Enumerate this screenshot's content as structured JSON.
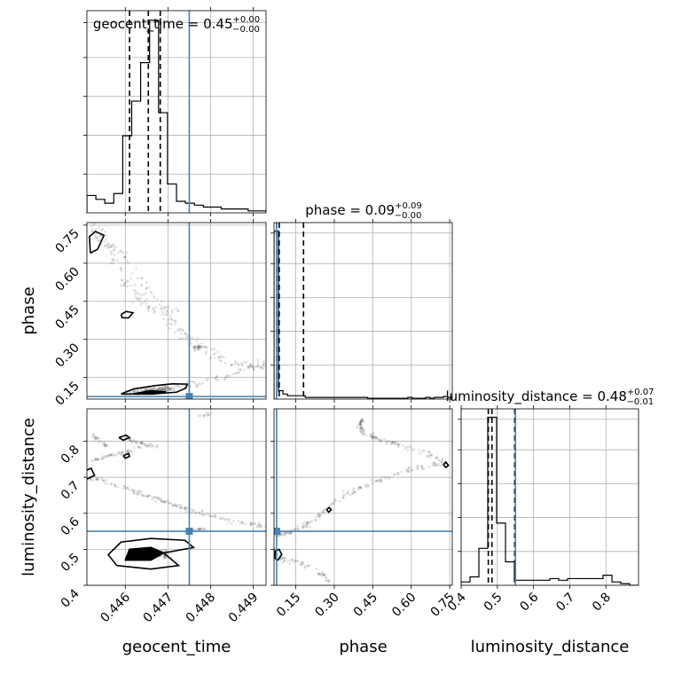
{
  "chart_data": {
    "type": "scatter",
    "parameters": [
      "geocent_time",
      "phase",
      "luminosity_distance"
    ],
    "axis_labels": {
      "geocent_time": "geocent_time",
      "phase": "phase",
      "luminosity_distance": "luminosity_distance"
    },
    "ranges": {
      "geocent_time": [
        0.4451,
        0.4493
      ],
      "phase": [
        0.065,
        0.76
      ],
      "luminosity_distance": [
        0.4,
        0.89
      ]
    },
    "ticks": {
      "geocent_time": [
        "0.446",
        "0.447",
        "0.448",
        "0.449"
      ],
      "phase": [
        "0.15",
        "0.30",
        "0.45",
        "0.60",
        "0.75"
      ],
      "luminosity_distance_x": [
        "0.4",
        "0.5",
        "0.6",
        "0.7",
        "0.8"
      ],
      "luminosity_distance_y": [
        "0.4",
        "0.5",
        "0.6",
        "0.7",
        "0.8"
      ]
    },
    "tick_values": {
      "geocent_time": [
        0.446,
        0.447,
        0.448,
        0.449
      ],
      "phase": [
        0.15,
        0.3,
        0.45,
        0.6,
        0.75
      ],
      "luminosity_distance": [
        0.4,
        0.5,
        0.6,
        0.7,
        0.8
      ]
    },
    "truth": {
      "geocent_time": 0.4475,
      "phase": 0.075,
      "luminosity_distance": 0.55,
      "color": "#4682b4"
    },
    "titles": [
      {
        "param": "geocent_time",
        "text": "geocent_time = 0.45",
        "plus": "+0.00",
        "minus": "−0.00"
      },
      {
        "param": "phase",
        "text": "phase = 0.09",
        "plus": "+0.09",
        "minus": "−0.00"
      },
      {
        "param": "luminosity_distance",
        "text": "luminosity_distance = 0.48",
        "plus": "+0.07",
        "minus": "−0.01"
      }
    ],
    "quantiles": {
      "geocent_time": [
        0.4461,
        0.44654,
        0.44682
      ],
      "phase": [
        0.075,
        0.085,
        0.18
      ],
      "luminosity_distance": [
        0.475,
        0.485,
        0.548
      ]
    },
    "histograms": {
      "geocent_time": {
        "edges": [
          0.4451,
          0.44531,
          0.44552,
          0.44573,
          0.44594,
          0.44615,
          0.44636,
          0.44657,
          0.44678,
          0.44699,
          0.4472,
          0.44741,
          0.44762,
          0.44783,
          0.44804,
          0.44825,
          0.44846,
          0.44867,
          0.44888,
          0.44909,
          0.4493
        ],
        "counts": [
          0.09,
          0.07,
          0.05,
          0.1,
          0.4,
          0.58,
          0.78,
          1.0,
          0.52,
          0.15,
          0.06,
          0.05,
          0.04,
          0.03,
          0.03,
          0.02,
          0.02,
          0.02,
          0.01,
          0.01
        ]
      },
      "phase": {
        "edges": [
          0.065,
          0.0824,
          0.0998,
          0.1171,
          0.1345,
          0.1519,
          0.1693,
          0.1866,
          0.204,
          0.2214,
          0.2388,
          0.2561,
          0.2735,
          0.2909,
          0.3083,
          0.3256,
          0.343,
          0.3604,
          0.3778,
          0.3951,
          0.4125,
          0.4299,
          0.4473,
          0.4646,
          0.482,
          0.4994,
          0.5168,
          0.5341,
          0.5515,
          0.5689,
          0.5863,
          0.6036,
          0.621,
          0.6384,
          0.6558,
          0.6731,
          0.6905,
          0.7079,
          0.7253,
          0.7426,
          0.76
        ],
        "counts": [
          1.0,
          0.05,
          0.03,
          0.02,
          0.02,
          0.02,
          0.02,
          0.01,
          0.01,
          0.01,
          0.01,
          0.01,
          0.01,
          0.01,
          0.01,
          0.01,
          0.01,
          0.01,
          0.01,
          0.01,
          0.01,
          0.005,
          0.005,
          0.005,
          0.005,
          0.005,
          0.005,
          0.005,
          0.005,
          0.005,
          0.01,
          0.005,
          0.005,
          0.005,
          0.01,
          0.005,
          0.01,
          0.01,
          0.015,
          0.01
        ]
      },
      "luminosity_distance": {
        "edges": [
          0.4,
          0.4245,
          0.449,
          0.4735,
          0.498,
          0.5225,
          0.547,
          0.5715,
          0.596,
          0.6205,
          0.645,
          0.6695,
          0.694,
          0.7185,
          0.743,
          0.7675,
          0.792,
          0.8165,
          0.841,
          0.8655,
          0.89
        ],
        "counts": [
          0.02,
          0.05,
          0.22,
          1.0,
          0.37,
          0.14,
          0.03,
          0.03,
          0.03,
          0.03,
          0.04,
          0.03,
          0.04,
          0.04,
          0.04,
          0.04,
          0.06,
          0.02,
          0.01,
          0.0
        ]
      }
    },
    "contours": {
      "phase_vs_geocent_time": [
        [
          [
            0.4459,
            0.085
          ],
          [
            0.4462,
            0.105
          ],
          [
            0.4467,
            0.118
          ],
          [
            0.4471,
            0.125
          ],
          [
            0.44745,
            0.124
          ],
          [
            0.44742,
            0.108
          ],
          [
            0.4472,
            0.092
          ],
          [
            0.4466,
            0.085
          ],
          [
            0.4459,
            0.085
          ]
        ],
        [
          [
            0.4462,
            0.086
          ],
          [
            0.4466,
            0.098
          ],
          [
            0.44695,
            0.093
          ],
          [
            0.44665,
            0.085
          ],
          [
            0.4462,
            0.086
          ]
        ],
        [
          [
            0.44518,
            0.64
          ],
          [
            0.44535,
            0.655
          ],
          [
            0.4455,
            0.71
          ],
          [
            0.4453,
            0.725
          ],
          [
            0.44516,
            0.705
          ],
          [
            0.44518,
            0.64
          ]
        ],
        [
          [
            0.4459,
            0.398
          ],
          [
            0.44602,
            0.41
          ],
          [
            0.44618,
            0.405
          ],
          [
            0.44608,
            0.385
          ],
          [
            0.44593,
            0.385
          ],
          [
            0.4459,
            0.398
          ]
        ]
      ],
      "luminosity_distance_vs_geocent_time": [
        [
          [
            0.4458,
            0.455
          ],
          [
            0.4456,
            0.485
          ],
          [
            0.4459,
            0.52
          ],
          [
            0.4466,
            0.53
          ],
          [
            0.4474,
            0.525
          ],
          [
            0.4476,
            0.505
          ],
          [
            0.4469,
            0.49
          ],
          [
            0.44725,
            0.455
          ],
          [
            0.4466,
            0.445
          ],
          [
            0.4458,
            0.455
          ]
        ],
        [
          [
            0.446,
            0.47
          ],
          [
            0.4461,
            0.5
          ],
          [
            0.4466,
            0.505
          ],
          [
            0.4469,
            0.49
          ],
          [
            0.4466,
            0.47
          ],
          [
            0.446,
            0.47
          ]
        ],
        [
          [
            0.4451,
            0.695
          ],
          [
            0.44528,
            0.705
          ],
          [
            0.4452,
            0.725
          ],
          [
            0.4451,
            0.72
          ]
        ],
        [
          [
            0.44585,
            0.81
          ],
          [
            0.44602,
            0.817
          ],
          [
            0.4461,
            0.81
          ],
          [
            0.44595,
            0.803
          ],
          [
            0.44585,
            0.81
          ]
        ],
        [
          [
            0.44595,
            0.76
          ],
          [
            0.44608,
            0.766
          ],
          [
            0.4461,
            0.758
          ],
          [
            0.446,
            0.753
          ],
          [
            0.44595,
            0.76
          ]
        ]
      ],
      "luminosity_distance_vs_phase": [
        [
          [
            0.068,
            0.475
          ],
          [
            0.07,
            0.495
          ],
          [
            0.085,
            0.5
          ],
          [
            0.095,
            0.485
          ],
          [
            0.08,
            0.47
          ],
          [
            0.068,
            0.475
          ]
        ],
        [
          [
            0.725,
            0.735
          ],
          [
            0.735,
            0.742
          ],
          [
            0.745,
            0.733
          ],
          [
            0.735,
            0.727
          ],
          [
            0.725,
            0.735
          ]
        ],
        [
          [
            0.27,
            0.61
          ],
          [
            0.28,
            0.616
          ],
          [
            0.288,
            0.61
          ],
          [
            0.278,
            0.603
          ],
          [
            0.27,
            0.61
          ]
        ]
      ]
    },
    "samples": {
      "phase_vs_geocent_time": [
        {
          "path": [
            [
              0.4452,
              0.74
            ],
            [
              0.4454,
              0.71
            ],
            [
              0.4457,
              0.66
            ],
            [
              0.4461,
              0.59
            ],
            [
              0.4465,
              0.5
            ],
            [
              0.4469,
              0.41
            ],
            [
              0.4473,
              0.33
            ],
            [
              0.4477,
              0.27
            ],
            [
              0.4481,
              0.24
            ],
            [
              0.4487,
              0.2
            ],
            [
              0.4493,
              0.2
            ]
          ],
          "n": 160,
          "spread": [
            0.00014,
            0.018
          ]
        },
        {
          "path": [
            [
              0.4452,
              0.73
            ],
            [
              0.4456,
              0.66
            ],
            [
              0.4459,
              0.56
            ],
            [
              0.4462,
              0.47
            ],
            [
              0.4466,
              0.43
            ],
            [
              0.4473,
              0.4
            ]
          ],
          "n": 80,
          "spread": [
            0.00012,
            0.02
          ]
        },
        {
          "path": [
            [
              0.4493,
              0.2
            ],
            [
              0.4485,
              0.16
            ],
            [
              0.4477,
              0.125
            ],
            [
              0.447,
              0.105
            ],
            [
              0.4464,
              0.095
            ]
          ],
          "n": 90,
          "spread": [
            0.00012,
            0.012
          ]
        },
        {
          "path": [
            [
              0.4461,
              0.09
            ],
            [
              0.4466,
              0.1
            ],
            [
              0.4471,
              0.11
            ]
          ],
          "n": 120,
          "spread": [
            0.0002,
            0.01
          ]
        },
        {
          "path": [
            [
              0.4476,
              0.27
            ],
            [
              0.4479,
              0.27
            ]
          ],
          "n": 20,
          "spread": [
            5e-05,
            0.004
          ]
        }
      ],
      "luminosity_distance_vs_geocent_time": [
        {
          "path": [
            [
              0.4451,
              0.7
            ],
            [
              0.4456,
              0.685
            ],
            [
              0.4461,
              0.665
            ],
            [
              0.4466,
              0.645
            ],
            [
              0.4471,
              0.625
            ],
            [
              0.4476,
              0.605
            ],
            [
              0.4481,
              0.59
            ],
            [
              0.4487,
              0.575
            ],
            [
              0.4492,
              0.565
            ]
          ],
          "n": 160,
          "spread": [
            8e-05,
            0.006
          ]
        },
        {
          "path": [
            [
              0.4452,
              0.745
            ],
            [
              0.4456,
              0.76
            ],
            [
              0.446,
              0.77
            ],
            [
              0.4464,
              0.785
            ]
          ],
          "n": 50,
          "spread": [
            6e-05,
            0.005
          ]
        },
        {
          "path": [
            [
              0.4459,
              0.815
            ],
            [
              0.4462,
              0.8
            ],
            [
              0.4465,
              0.79
            ],
            [
              0.4468,
              0.785
            ]
          ],
          "n": 40,
          "spread": [
            6e-05,
            0.005
          ]
        },
        {
          "path": [
            [
              0.4452,
              0.82
            ],
            [
              0.4454,
              0.8
            ],
            [
              0.4456,
              0.785
            ]
          ],
          "n": 25,
          "spread": [
            4e-05,
            0.006
          ]
        },
        {
          "path": [
            [
              0.4478,
              0.87
            ],
            [
              0.448,
              0.88
            ]
          ],
          "n": 12,
          "spread": [
            0.0001,
            0.006
          ]
        },
        {
          "path": [
            [
              0.4462,
              0.49
            ],
            [
              0.4466,
              0.49
            ],
            [
              0.447,
              0.485
            ]
          ],
          "n": 120,
          "spread": [
            0.00016,
            0.015
          ]
        },
        {
          "path": [
            [
              0.4475,
              0.553
            ],
            [
              0.4479,
              0.558
            ]
          ],
          "n": 20,
          "spread": [
            4e-05,
            0.003
          ]
        }
      ],
      "luminosity_distance_vs_phase": [
        {
          "path": [
            [
              0.075,
              0.54
            ],
            [
              0.14,
              0.55
            ],
            [
              0.21,
              0.575
            ],
            [
              0.28,
              0.62
            ],
            [
              0.35,
              0.655
            ],
            [
              0.45,
              0.685
            ],
            [
              0.55,
              0.71
            ],
            [
              0.65,
              0.73
            ],
            [
              0.74,
              0.74
            ]
          ],
          "n": 170,
          "spread": [
            0.01,
            0.007
          ]
        },
        {
          "path": [
            [
              0.74,
              0.74
            ],
            [
              0.65,
              0.77
            ],
            [
              0.55,
              0.79
            ],
            [
              0.48,
              0.805
            ],
            [
              0.42,
              0.82
            ],
            [
              0.4,
              0.84
            ],
            [
              0.41,
              0.86
            ]
          ],
          "n": 120,
          "spread": [
            0.01,
            0.007
          ]
        },
        {
          "path": [
            [
              0.07,
              0.48
            ],
            [
              0.12,
              0.47
            ],
            [
              0.18,
              0.46
            ],
            [
              0.25,
              0.435
            ],
            [
              0.28,
              0.41
            ]
          ],
          "n": 60,
          "spread": [
            0.01,
            0.008
          ]
        },
        {
          "path": [
            [
              0.068,
              0.49
            ]
          ],
          "n": 40,
          "spread": [
            0.006,
            0.012
          ]
        }
      ]
    }
  }
}
